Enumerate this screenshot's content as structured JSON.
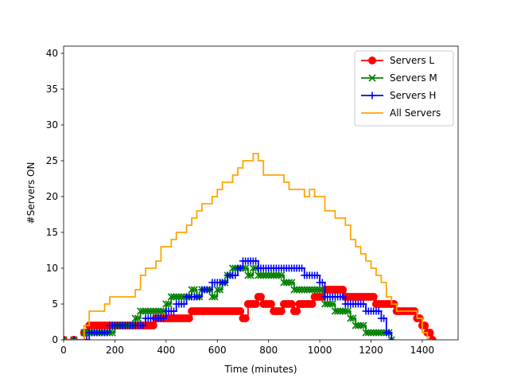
{
  "chart_data": {
    "type": "line",
    "title": "",
    "xlabel": "Time (minutes)",
    "ylabel": "#Servers ON",
    "xlim": [
      0,
      1540
    ],
    "ylim": [
      0,
      41
    ],
    "xticks": [
      0,
      200,
      400,
      600,
      800,
      1000,
      1200,
      1400
    ],
    "yticks": [
      0,
      5,
      10,
      15,
      20,
      25,
      30,
      35,
      40
    ],
    "grid": false,
    "legend": "top-right",
    "series": [
      {
        "name": "Servers L",
        "color": "#ff0000",
        "marker": "circle",
        "x": [
          0,
          80,
          100,
          120,
          140,
          160,
          180,
          200,
          220,
          240,
          260,
          280,
          300,
          320,
          340,
          360,
          380,
          400,
          420,
          440,
          460,
          480,
          500,
          520,
          540,
          560,
          580,
          600,
          620,
          640,
          660,
          680,
          700,
          720,
          740,
          760,
          780,
          800,
          820,
          840,
          860,
          880,
          900,
          920,
          940,
          960,
          980,
          1000,
          1020,
          1040,
          1060,
          1080,
          1100,
          1120,
          1140,
          1160,
          1180,
          1200,
          1220,
          1240,
          1260,
          1280,
          1300,
          1320,
          1340,
          1360,
          1380,
          1400,
          1420,
          1440
        ],
        "y": [
          0,
          1,
          2,
          2,
          2,
          2,
          2,
          2,
          2,
          2,
          2,
          2,
          2,
          2,
          2,
          3,
          3,
          3,
          3,
          3,
          3,
          3,
          4,
          4,
          4,
          4,
          4,
          4,
          4,
          4,
          4,
          4,
          3,
          5,
          5,
          6,
          5,
          5,
          4,
          4,
          5,
          5,
          4,
          5,
          5,
          5,
          6,
          6,
          7,
          7,
          7,
          7,
          6,
          6,
          6,
          6,
          6,
          6,
          5,
          5,
          5,
          5,
          4,
          4,
          4,
          4,
          3,
          2,
          1,
          0
        ]
      },
      {
        "name": "Servers M",
        "color": "#008000",
        "marker": "x",
        "x": [
          0,
          80,
          100,
          120,
          140,
          160,
          180,
          200,
          220,
          240,
          260,
          280,
          300,
          320,
          340,
          360,
          380,
          400,
          420,
          440,
          460,
          480,
          500,
          520,
          540,
          560,
          580,
          600,
          620,
          640,
          660,
          680,
          700,
          720,
          740,
          760,
          780,
          800,
          820,
          840,
          860,
          880,
          900,
          920,
          940,
          960,
          980,
          1000,
          1020,
          1040,
          1060,
          1080,
          1100,
          1120,
          1140,
          1160,
          1180,
          1200,
          1220,
          1240,
          1260,
          1280
        ],
        "y": [
          0,
          1,
          1,
          1,
          1,
          1,
          1,
          2,
          2,
          2,
          2,
          3,
          4,
          4,
          4,
          4,
          4,
          5,
          6,
          6,
          6,
          6,
          7,
          6,
          7,
          7,
          6,
          7,
          8,
          9,
          10,
          10,
          10,
          9,
          10,
          9,
          9,
          9,
          9,
          9,
          8,
          8,
          7,
          7,
          7,
          7,
          7,
          7,
          5,
          5,
          4,
          4,
          4,
          3,
          2,
          2,
          1,
          1,
          1,
          1,
          1,
          0
        ]
      },
      {
        "name": "Servers H",
        "color": "#0000ff",
        "marker": "plus",
        "x": [
          0,
          80,
          100,
          120,
          140,
          160,
          180,
          200,
          220,
          240,
          260,
          280,
          300,
          320,
          340,
          360,
          380,
          400,
          420,
          440,
          460,
          480,
          500,
          520,
          540,
          560,
          580,
          600,
          620,
          640,
          660,
          680,
          700,
          720,
          740,
          760,
          780,
          800,
          820,
          840,
          860,
          880,
          900,
          920,
          940,
          960,
          980,
          1000,
          1020,
          1040,
          1060,
          1080,
          1100,
          1120,
          1140,
          1160,
          1180,
          1200,
          1220,
          1240,
          1260,
          1280
        ],
        "y": [
          0,
          0,
          1,
          1,
          1,
          1,
          2,
          2,
          2,
          2,
          2,
          2,
          2,
          3,
          3,
          3,
          3,
          4,
          4,
          5,
          5,
          6,
          6,
          6,
          7,
          7,
          8,
          8,
          8,
          9,
          9,
          10,
          11,
          11,
          11,
          10,
          10,
          10,
          10,
          10,
          10,
          10,
          10,
          10,
          9,
          9,
          9,
          8,
          6,
          6,
          6,
          6,
          5,
          5,
          5,
          5,
          4,
          4,
          4,
          3,
          1,
          0
        ]
      },
      {
        "name": "All Servers",
        "color": "#ffa500",
        "marker": "none",
        "x": [
          0,
          80,
          100,
          120,
          140,
          160,
          180,
          200,
          220,
          240,
          260,
          280,
          300,
          320,
          340,
          360,
          380,
          400,
          420,
          440,
          460,
          480,
          500,
          520,
          540,
          560,
          580,
          600,
          620,
          640,
          660,
          680,
          700,
          720,
          740,
          760,
          780,
          800,
          820,
          840,
          860,
          880,
          900,
          920,
          940,
          960,
          980,
          1000,
          1020,
          1040,
          1060,
          1080,
          1100,
          1120,
          1140,
          1160,
          1180,
          1200,
          1220,
          1240,
          1260,
          1280,
          1300,
          1320,
          1340,
          1360,
          1380,
          1400,
          1420,
          1440
        ],
        "y": [
          0,
          2,
          4,
          4,
          4,
          5,
          6,
          6,
          6,
          6,
          6,
          7,
          9,
          10,
          10,
          11,
          13,
          13,
          14,
          15,
          15,
          16,
          17,
          18,
          19,
          19,
          20,
          21,
          22,
          22,
          23,
          24,
          25,
          25,
          26,
          25,
          23,
          23,
          23,
          23,
          22,
          21,
          21,
          21,
          20,
          21,
          20,
          20,
          18,
          18,
          17,
          17,
          16,
          14,
          13,
          12,
          11,
          10,
          9,
          8,
          6,
          5,
          4,
          4,
          4,
          4,
          3,
          1,
          0,
          0
        ]
      }
    ]
  }
}
